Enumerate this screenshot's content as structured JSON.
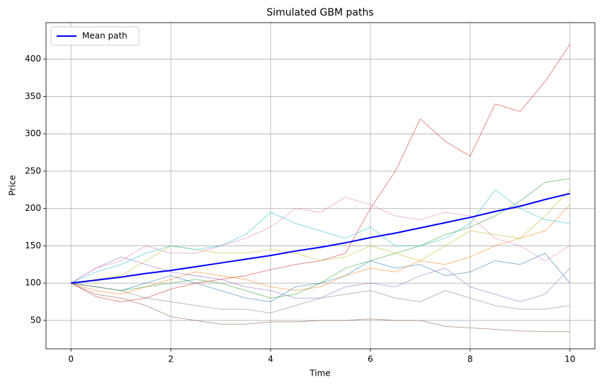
{
  "chart_data": {
    "type": "line",
    "title": "Simulated GBM paths",
    "xlabel": "Time",
    "ylabel": "Price",
    "x": [
      0,
      0.5,
      1,
      1.5,
      2,
      2.5,
      3,
      3.5,
      4,
      4.5,
      5,
      5.5,
      6,
      6.5,
      7,
      7.5,
      8,
      8.5,
      9,
      9.5,
      10
    ],
    "series": [
      {
        "color": "#1f77b4",
        "values": [
          100,
          95,
          90,
          100,
          110,
          100,
          90,
          80,
          75,
          95,
          100,
          110,
          130,
          120,
          125,
          110,
          115,
          130,
          125,
          140,
          100
        ]
      },
      {
        "color": "#ff7f0e",
        "values": [
          100,
          90,
          85,
          95,
          105,
          115,
          110,
          105,
          95,
          90,
          95,
          110,
          120,
          115,
          130,
          125,
          135,
          150,
          160,
          170,
          205
        ]
      },
      {
        "color": "#2ca02c",
        "values": [
          100,
          95,
          90,
          95,
          100,
          105,
          100,
          90,
          80,
          85,
          100,
          120,
          130,
          140,
          150,
          165,
          175,
          190,
          210,
          235,
          240
        ]
      },
      {
        "color": "#d62728",
        "values": [
          100,
          82,
          75,
          80,
          92,
          100,
          105,
          110,
          118,
          125,
          130,
          140,
          200,
          250,
          320,
          290,
          270,
          340,
          330,
          370,
          420
        ]
      },
      {
        "color": "#9467bd",
        "values": [
          100,
          120,
          135,
          125,
          115,
          110,
          105,
          95,
          90,
          80,
          80,
          95,
          100,
          95,
          110,
          120,
          95,
          85,
          75,
          85,
          120
        ]
      },
      {
        "color": "#8c564b",
        "values": [
          100,
          85,
          80,
          70,
          55,
          50,
          45,
          45,
          48,
          48,
          50,
          50,
          52,
          50,
          50,
          42,
          40,
          38,
          36,
          35,
          35
        ]
      },
      {
        "color": "#e377c2",
        "values": [
          100,
          120,
          130,
          150,
          140,
          140,
          150,
          160,
          175,
          200,
          195,
          215,
          205,
          190,
          185,
          195,
          190,
          160,
          150,
          130,
          150
        ]
      },
      {
        "color": "#7f7f7f",
        "values": [
          100,
          95,
          90,
          80,
          75,
          70,
          65,
          65,
          60,
          70,
          80,
          85,
          90,
          80,
          75,
          90,
          80,
          70,
          65,
          65,
          70
        ]
      },
      {
        "color": "#bcbd22",
        "values": [
          100,
          105,
          110,
          130,
          150,
          145,
          140,
          140,
          145,
          140,
          130,
          135,
          150,
          140,
          130,
          150,
          170,
          165,
          160,
          190,
          225
        ]
      },
      {
        "color": "#17becf",
        "values": [
          100,
          115,
          125,
          140,
          150,
          145,
          150,
          165,
          195,
          180,
          170,
          160,
          175,
          150,
          150,
          160,
          180,
          225,
          200,
          185,
          180
        ]
      },
      {
        "name": "Mean path",
        "color": "#0000ff",
        "values": [
          100,
          104,
          108,
          113,
          117,
          122,
          127,
          132,
          137,
          143,
          148,
          154,
          161,
          167,
          174,
          181,
          188,
          196,
          203,
          212,
          220
        ]
      }
    ],
    "xlim": [
      -0.5,
      10.5
    ],
    "xticks": [
      0,
      2,
      4,
      6,
      8,
      10
    ],
    "ylim": [
      12,
      449
    ],
    "yticks": [
      50,
      100,
      150,
      200,
      250,
      300,
      350,
      400
    ],
    "grid": true,
    "legend": "upper left"
  }
}
